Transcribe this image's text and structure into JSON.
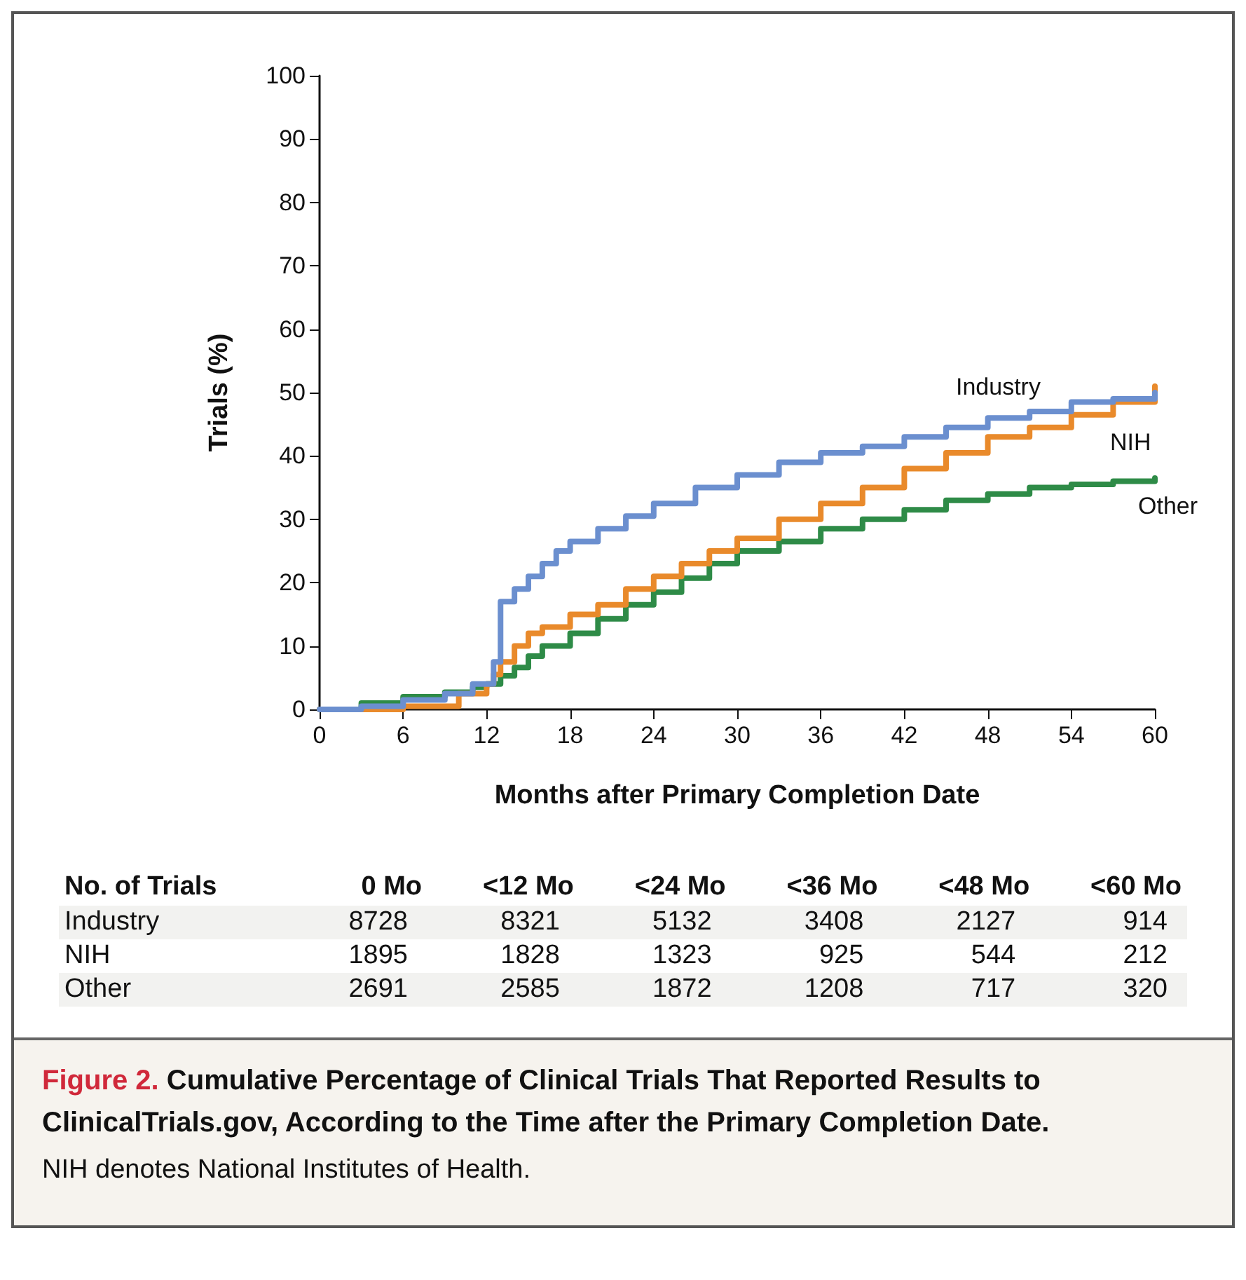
{
  "chart_data": [
    {
      "type": "step",
      "xlabel": "Months after Primary Completion Date",
      "ylabel": "Trials (%)",
      "xlim": [
        0,
        60
      ],
      "ylim": [
        0,
        100
      ],
      "xticks": [
        0,
        6,
        12,
        18,
        24,
        30,
        36,
        42,
        48,
        54,
        60
      ],
      "yticks": [
        0,
        10,
        20,
        30,
        40,
        50,
        60,
        70,
        80,
        90,
        100
      ],
      "grid": false,
      "legend": false,
      "marker": "none",
      "line_style": "solid",
      "series": [
        {
          "name": "Industry",
          "color": "#6b8fcf",
          "x": [
            0,
            3,
            6,
            9,
            11,
            12.5,
            13,
            14,
            15,
            16,
            17,
            18,
            20,
            22,
            24,
            27,
            30,
            33,
            36,
            39,
            42,
            45,
            48,
            51,
            54,
            57,
            60
          ],
          "values": [
            0,
            0.5,
            1.5,
            2.5,
            4,
            7.5,
            17,
            19,
            21,
            23,
            25,
            26.5,
            28.5,
            30.5,
            32.5,
            35,
            37,
            39,
            40.5,
            41.5,
            43,
            44.5,
            46,
            47,
            48.5,
            49,
            50
          ]
        },
        {
          "name": "NIH",
          "color": "#e98a2b",
          "x": [
            0,
            3,
            6,
            10,
            12,
            12.5,
            13,
            14,
            15,
            16,
            18,
            20,
            22,
            24,
            26,
            28,
            30,
            33,
            36,
            39,
            42,
            45,
            48,
            51,
            54,
            57,
            60
          ],
          "values": [
            0,
            0,
            0.5,
            2.5,
            4,
            5.5,
            7.5,
            10,
            12,
            13,
            15,
            16.5,
            19,
            21,
            23,
            25,
            27,
            30,
            32.5,
            35,
            38,
            40.5,
            43,
            44.5,
            46.5,
            48.5,
            51
          ]
        },
        {
          "name": "Other",
          "color": "#2e8b47",
          "x": [
            0,
            3,
            6,
            9,
            11,
            12,
            13,
            14,
            15,
            16,
            18,
            20,
            22,
            24,
            26,
            28,
            30,
            33,
            36,
            39,
            42,
            45,
            48,
            51,
            54,
            57,
            60
          ],
          "values": [
            0,
            1,
            2,
            2.7,
            3.5,
            4,
            5.3,
            6.6,
            8.4,
            10,
            12,
            14.3,
            16.5,
            18.5,
            20.7,
            23,
            25,
            26.5,
            28.5,
            30,
            31.5,
            33,
            34,
            35,
            35.5,
            36,
            36.5
          ]
        }
      ]
    },
    {
      "type": "other",
      "title": "No. of Trials",
      "data_labels": true,
      "categories": [
        "0 Mo",
        "<12 Mo",
        "<24 Mo",
        "<36 Mo",
        "<48 Mo",
        "<60 Mo"
      ],
      "series": [
        {
          "name": "Industry",
          "values": [
            8728,
            8321,
            5132,
            3408,
            2127,
            914
          ]
        },
        {
          "name": "NIH",
          "values": [
            1895,
            1828,
            1323,
            925,
            544,
            212
          ]
        },
        {
          "name": "Other",
          "values": [
            2691,
            2585,
            1872,
            1208,
            717,
            320
          ]
        }
      ]
    },
    {
      "type": "other",
      "title": "Figure 2. Cumulative Percentage of Clinical Trials That Reported Results to ClinicalTrials.gov, According to the Time after the Primary Completion Date.",
      "annotations": [
        "NIH denotes National Institutes of Health."
      ]
    }
  ]
}
